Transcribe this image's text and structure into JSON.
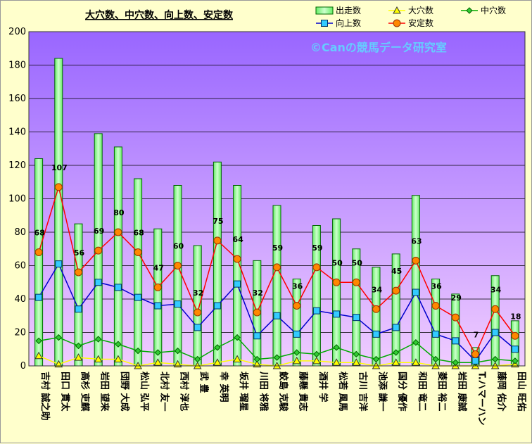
{
  "chart_data": {
    "type": "bar",
    "title": "大穴数、中穴数、向上数、安定数",
    "watermark": "©Canの競馬データ研究室",
    "ylim": [
      0,
      200
    ],
    "yticks": [
      0,
      20,
      40,
      60,
      80,
      100,
      120,
      140,
      160,
      180,
      200
    ],
    "grid": true,
    "legend_position": "top-right",
    "colors": {
      "plot_bg_top": "#9966ff",
      "plot_bg_bottom": "#f0ccff",
      "bar_fill": "#99ff99",
      "bar_stroke": "#006600",
      "big": "#ffff00",
      "mid": "#00aa00",
      "up": "#0000cc",
      "up_marker": "#33ccff",
      "stable": "#ff0000",
      "stable_marker": "#ff8800"
    },
    "categories": [
      "吉村 誠之助",
      "田口 貫太",
      "高杉 吏麒",
      "岩田 望来",
      "団野 大成",
      "松山 弘平",
      "北村 友一",
      "西村 淳也",
      "武 豊",
      "幸 英明",
      "坂井 瑠星",
      "川田 将雅",
      "鮫島 克駿",
      "藤懸 貴志",
      "酒井 学",
      "松若 風馬",
      "古川 吉洋",
      "池添 謙一",
      "国分 優作",
      "和田 竜二",
      "菱田 裕二",
      "岩田 康誠",
      "T.ハマーハン",
      "藤岡 佑介",
      "田山 旺佑"
    ],
    "series": [
      {
        "name": "出走数",
        "type": "bar",
        "values": [
          124,
          184,
          85,
          139,
          131,
          112,
          82,
          108,
          72,
          122,
          108,
          63,
          96,
          52,
          84,
          88,
          70,
          59,
          67,
          102,
          52,
          43,
          11,
          54,
          27
        ]
      },
      {
        "name": "大穴数",
        "type": "line",
        "values": [
          6,
          1,
          5,
          4,
          4,
          0,
          2,
          1,
          0,
          2,
          4,
          1,
          0,
          3,
          3,
          2,
          2,
          0,
          2,
          2,
          0,
          0,
          0,
          0,
          1
        ]
      },
      {
        "name": "中穴数",
        "type": "line",
        "values": [
          15,
          17,
          12,
          16,
          13,
          9,
          8,
          9,
          4,
          11,
          17,
          4,
          5,
          8,
          7,
          11,
          7,
          4,
          8,
          14,
          4,
          2,
          2,
          4,
          3
        ]
      },
      {
        "name": "向上数",
        "type": "line",
        "values": [
          41,
          61,
          34,
          50,
          47,
          41,
          36,
          37,
          23,
          36,
          49,
          18,
          30,
          19,
          33,
          31,
          29,
          19,
          23,
          44,
          19,
          15,
          3,
          20,
          10
        ]
      },
      {
        "name": "安定数",
        "type": "line",
        "values": [
          68,
          107,
          56,
          69,
          80,
          68,
          47,
          60,
          32,
          75,
          64,
          32,
          59,
          36,
          59,
          50,
          50,
          34,
          45,
          63,
          36,
          29,
          7,
          34,
          18
        ]
      }
    ]
  }
}
